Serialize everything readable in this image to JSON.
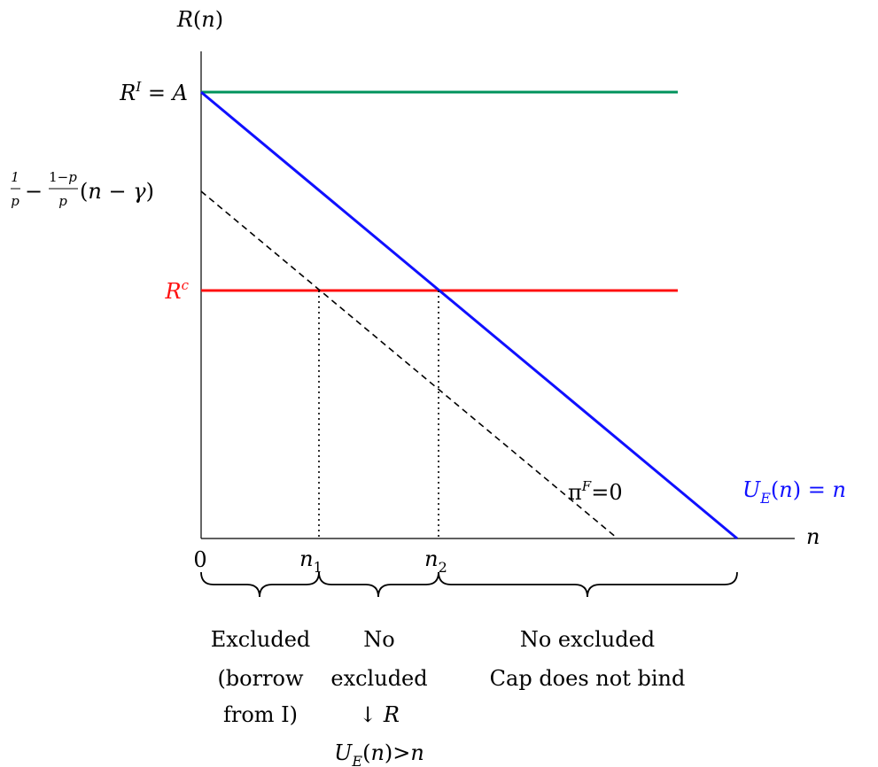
{
  "axes": {
    "y_label": "R(n)",
    "x_label": "n",
    "origin_label": "0"
  },
  "levels": {
    "ri_label": "R^I = A",
    "ri_color": "#00935c",
    "rc_label": "R^c",
    "rc_color": "#ff1010",
    "intercept_label": "1/p − (1−p)/p (n − γ)"
  },
  "lines": {
    "ue_label": "U_E(n) = n",
    "ue_color": "#1010ff",
    "piF_label": "π^F=0"
  },
  "thresholds": {
    "n1_label": "n_1",
    "n2_label": "n_2"
  },
  "regions": [
    {
      "lines": [
        "Excluded",
        "(borrow",
        "from I)"
      ]
    },
    {
      "lines": [
        "No",
        "excluded",
        "↓ R",
        "U_E(n)>n"
      ]
    },
    {
      "lines": [
        "No excluded",
        "Cap does not bind"
      ]
    }
  ]
}
